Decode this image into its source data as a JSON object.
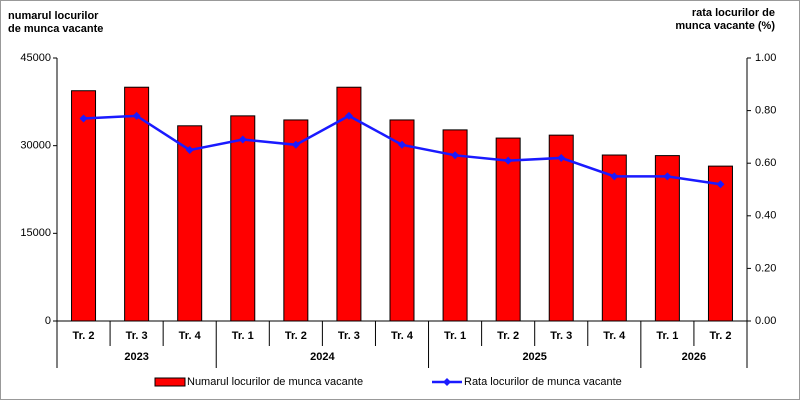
{
  "chart_data": {
    "type": "bar-line",
    "y_title": [
      "numarul locurilor",
      "de munca  vacante"
    ],
    "y2_title": [
      "rata locurilor de",
      "munca vacante (%)"
    ],
    "groups": [
      {
        "label": "2023",
        "categories": [
          "Tr. 2",
          "Tr. 3",
          "Tr. 4"
        ]
      },
      {
        "label": "2024",
        "categories": [
          "Tr. 1",
          "Tr. 2",
          "Tr. 3",
          "Tr. 4"
        ]
      },
      {
        "label": "2025",
        "categories": [
          "Tr. 1",
          "Tr. 2",
          "Tr. 3",
          "Tr. 4"
        ]
      },
      {
        "label": "2026",
        "categories": [
          "Tr. 1",
          "Tr. 2"
        ]
      }
    ],
    "series": [
      {
        "name": "Numarul locurilor de munca vacante",
        "type": "bar",
        "color": "#ff0000",
        "values": [
          39400,
          40000,
          33400,
          35100,
          34400,
          40000,
          34400,
          32700,
          31300,
          31800,
          28400,
          28300,
          26500
        ]
      },
      {
        "name": "Rata locurilor de munca vacante",
        "type": "line",
        "axis": "y2",
        "color": "#1a1aff",
        "values": [
          0.77,
          0.78,
          0.65,
          0.69,
          0.67,
          0.78,
          0.67,
          0.63,
          0.61,
          0.62,
          0.55,
          0.55,
          0.52
        ]
      }
    ],
    "ylim": [
      0,
      45000
    ],
    "yticks": [
      0,
      15000,
      30000,
      45000
    ],
    "y2lim": [
      0,
      1
    ],
    "y2ticks": [
      {
        "value": 0,
        "label": "0.00"
      },
      {
        "value": 0.2,
        "label": "0.20"
      },
      {
        "value": 0.4,
        "label": "0.40"
      },
      {
        "value": 0.6,
        "label": "0.60"
      },
      {
        "value": 0.8,
        "label": "0.80"
      },
      {
        "value": 1,
        "label": "1.00"
      }
    ]
  }
}
